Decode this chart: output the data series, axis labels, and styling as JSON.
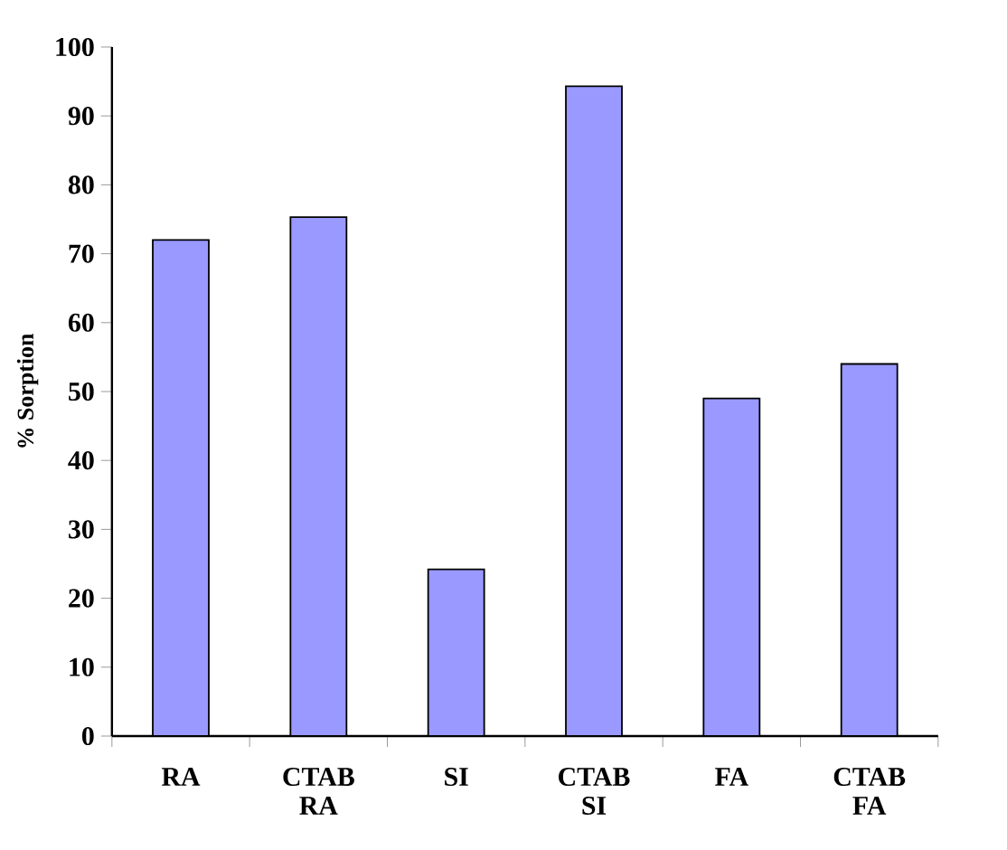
{
  "chart_data": {
    "type": "bar",
    "ylabel": "% Sorption",
    "categories": [
      "RA",
      "CTAB RA",
      "SI",
      "CTAB SI",
      "FA",
      "CTAB FA"
    ],
    "values": [
      72,
      75.3,
      24.2,
      94.3,
      49,
      54
    ],
    "color": "#9999ff",
    "ylim": [
      0,
      100
    ],
    "yticks": [
      0,
      10,
      20,
      30,
      40,
      50,
      60,
      70,
      80,
      90,
      100
    ]
  }
}
